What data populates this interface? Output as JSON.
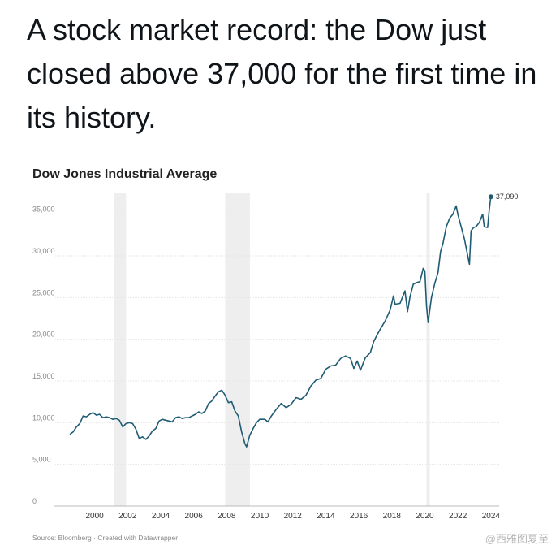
{
  "post": {
    "headline": "A stock market record: the Dow just closed above 37,000 for the first time in its history."
  },
  "chart_data": {
    "type": "line",
    "title": "Dow Jones Industrial Average",
    "xlabel": "",
    "ylabel": "",
    "xlim": [
      1998.2,
      2024.5
    ],
    "ylim": [
      0,
      37500
    ],
    "y_ticks": [
      0,
      5000,
      10000,
      15000,
      20000,
      25000,
      30000,
      35000
    ],
    "y_tick_labels": [
      "0",
      "5,000",
      "10,000",
      "15,000",
      "20,000",
      "25,000",
      "30,000",
      "35,000"
    ],
    "x_ticks": [
      2000,
      2002,
      2004,
      2006,
      2008,
      2010,
      2012,
      2014,
      2016,
      2018,
      2020,
      2022,
      2024
    ],
    "x_tick_labels": [
      "2000",
      "2002",
      "2004",
      "2006",
      "2008",
      "2010",
      "2012",
      "2014",
      "2016",
      "2018",
      "2020",
      "2022",
      "2024"
    ],
    "grid": true,
    "shaded_periods": [
      [
        2001.2,
        2001.9
      ],
      [
        2007.9,
        2009.4
      ],
      [
        2020.1,
        2020.3
      ]
    ],
    "series": [
      {
        "color": "#1f5c74",
        "x": [
          1998.5,
          1998.7,
          1998.9,
          1999.1,
          1999.3,
          1999.5,
          1999.7,
          1999.9,
          2000.1,
          2000.3,
          2000.5,
          2000.7,
          2000.9,
          2001.1,
          2001.3,
          2001.5,
          2001.7,
          2001.9,
          2002.1,
          2002.3,
          2002.5,
          2002.7,
          2002.9,
          2003.1,
          2003.3,
          2003.5,
          2003.7,
          2003.9,
          2004.1,
          2004.3,
          2004.5,
          2004.7,
          2004.9,
          2005.1,
          2005.3,
          2005.5,
          2005.7,
          2005.9,
          2006.1,
          2006.3,
          2006.5,
          2006.7,
          2006.9,
          2007.1,
          2007.3,
          2007.5,
          2007.7,
          2007.9,
          2008.1,
          2008.3,
          2008.5,
          2008.7,
          2008.9,
          2009.1,
          2009.2,
          2009.4,
          2009.6,
          2009.8,
          2010.0,
          2010.3,
          2010.5,
          2010.7,
          2011.0,
          2011.3,
          2011.6,
          2011.9,
          2012.2,
          2012.5,
          2012.8,
          2013.1,
          2013.4,
          2013.7,
          2014.0,
          2014.3,
          2014.6,
          2014.9,
          2015.2,
          2015.5,
          2015.7,
          2015.9,
          2016.1,
          2016.4,
          2016.7,
          2016.9,
          2017.1,
          2017.3,
          2017.6,
          2017.9,
          2018.1,
          2018.2,
          2018.5,
          2018.8,
          2018.95,
          2019.1,
          2019.3,
          2019.5,
          2019.7,
          2019.9,
          2020.0,
          2020.1,
          2020.2,
          2020.4,
          2020.6,
          2020.8,
          2020.95,
          2021.1,
          2021.3,
          2021.5,
          2021.7,
          2021.9,
          2022.0,
          2022.2,
          2022.4,
          2022.5,
          2022.7,
          2022.8,
          2022.95,
          2023.1,
          2023.3,
          2023.5,
          2023.6,
          2023.8,
          2023.9,
          2024.0
        ],
        "y": [
          8600,
          8900,
          9500,
          9900,
          10800,
          10700,
          11000,
          11200,
          10900,
          11000,
          10600,
          10700,
          10600,
          10400,
          10500,
          10300,
          9500,
          9900,
          10000,
          9900,
          9200,
          8100,
          8300,
          8000,
          8400,
          9000,
          9300,
          10200,
          10400,
          10300,
          10200,
          10100,
          10600,
          10700,
          10500,
          10600,
          10600,
          10800,
          11000,
          11300,
          11100,
          11400,
          12300,
          12600,
          13200,
          13700,
          13900,
          13300,
          12400,
          12500,
          11400,
          10800,
          8900,
          7500,
          7100,
          8500,
          9300,
          10000,
          10400,
          10400,
          10100,
          10800,
          11600,
          12300,
          11800,
          12200,
          13000,
          12800,
          13300,
          14400,
          15100,
          15300,
          16400,
          16800,
          16900,
          17700,
          18000,
          17700,
          16500,
          17400,
          16300,
          17800,
          18400,
          19700,
          20500,
          21200,
          22200,
          23500,
          25200,
          24200,
          24300,
          25800,
          23300,
          25100,
          26600,
          26800,
          26900,
          28500,
          28200,
          24000,
          22000,
          25000,
          26700,
          28000,
          30500,
          31500,
          33500,
          34500,
          35000,
          36000,
          35000,
          33500,
          32000,
          31000,
          29000,
          33000,
          33400,
          33500,
          34000,
          35000,
          33500,
          33400,
          35500,
          37090
        ]
      }
    ],
    "annotations": [
      {
        "x": 2024.0,
        "y": 37090,
        "text": "37,090"
      }
    ],
    "source": "Source: Bloomberg · Created with Datawrapper"
  },
  "watermark": "@西雅图夏至"
}
